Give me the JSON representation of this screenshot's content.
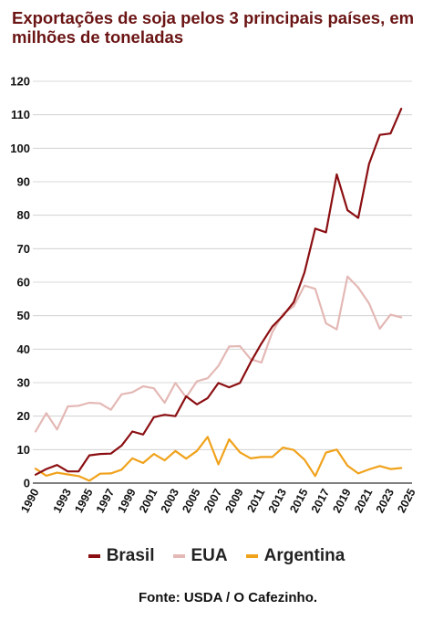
{
  "chart_data": {
    "type": "line",
    "title": "Exportações de soja pelos 3 principais países, em milhões de toneladas",
    "source": "Fonte: USDA / O Cafezinho.",
    "xlabel": "",
    "ylabel": "",
    "ylim": [
      0,
      120
    ],
    "yticks": [
      0,
      10,
      20,
      30,
      40,
      50,
      60,
      70,
      80,
      90,
      100,
      110,
      120
    ],
    "xticks": [
      1990,
      1993,
      1995,
      1997,
      1999,
      2001,
      2003,
      2005,
      2007,
      2009,
      2011,
      2013,
      2015,
      2017,
      2019,
      2021,
      2023,
      2025
    ],
    "grid": "horizontal",
    "legend_position": "bottom",
    "x": [
      1990,
      1991,
      1992,
      1993,
      1994,
      1995,
      1996,
      1997,
      1998,
      1999,
      2000,
      2001,
      2002,
      2003,
      2004,
      2005,
      2006,
      2007,
      2008,
      2009,
      2010,
      2011,
      2012,
      2013,
      2014,
      2015,
      2016,
      2017,
      2018,
      2019,
      2020,
      2021,
      2022,
      2023,
      2024,
      2025
    ],
    "series": [
      {
        "name": "Brasil",
        "color": "#8b0f12",
        "values": [
          2.5,
          4.2,
          5.4,
          3.5,
          3.5,
          8.3,
          8.7,
          8.8,
          11.2,
          15.4,
          14.5,
          19.7,
          20.4,
          20.0,
          25.9,
          23.5,
          25.4,
          29.9,
          28.6,
          29.9,
          36.1,
          41.7,
          46.7,
          50.0,
          54.0,
          62.9,
          76.0,
          74.9,
          92.2,
          81.5,
          79.2,
          95.3,
          104.0,
          104.4,
          111.8,
          null
        ]
      },
      {
        "name": "EUA",
        "color": "#e3b8b5",
        "values": [
          15.4,
          20.9,
          16.0,
          22.9,
          23.1,
          24.0,
          23.8,
          21.9,
          26.5,
          27.1,
          28.9,
          28.3,
          24.0,
          29.9,
          25.6,
          30.4,
          31.3,
          35.0,
          40.8,
          40.9,
          37.0,
          36.0,
          45.0,
          50.5,
          52.8,
          59.0,
          58.0,
          47.7,
          45.9,
          61.7,
          58.4,
          53.7,
          46.1,
          50.3,
          49.5,
          null
        ]
      },
      {
        "name": "Argentina",
        "color": "#f0a21b",
        "values": [
          4.3,
          2.2,
          3.1,
          2.6,
          2.1,
          0.7,
          2.8,
          2.9,
          4.0,
          7.4,
          6.0,
          8.7,
          6.8,
          9.6,
          7.3,
          9.6,
          13.8,
          5.6,
          13.1,
          9.2,
          7.4,
          7.8,
          7.8,
          10.6,
          9.9,
          7.0,
          2.1,
          9.1,
          10.0,
          5.2,
          2.9,
          4.1,
          5.1,
          4.2,
          4.5,
          null
        ]
      }
    ]
  }
}
